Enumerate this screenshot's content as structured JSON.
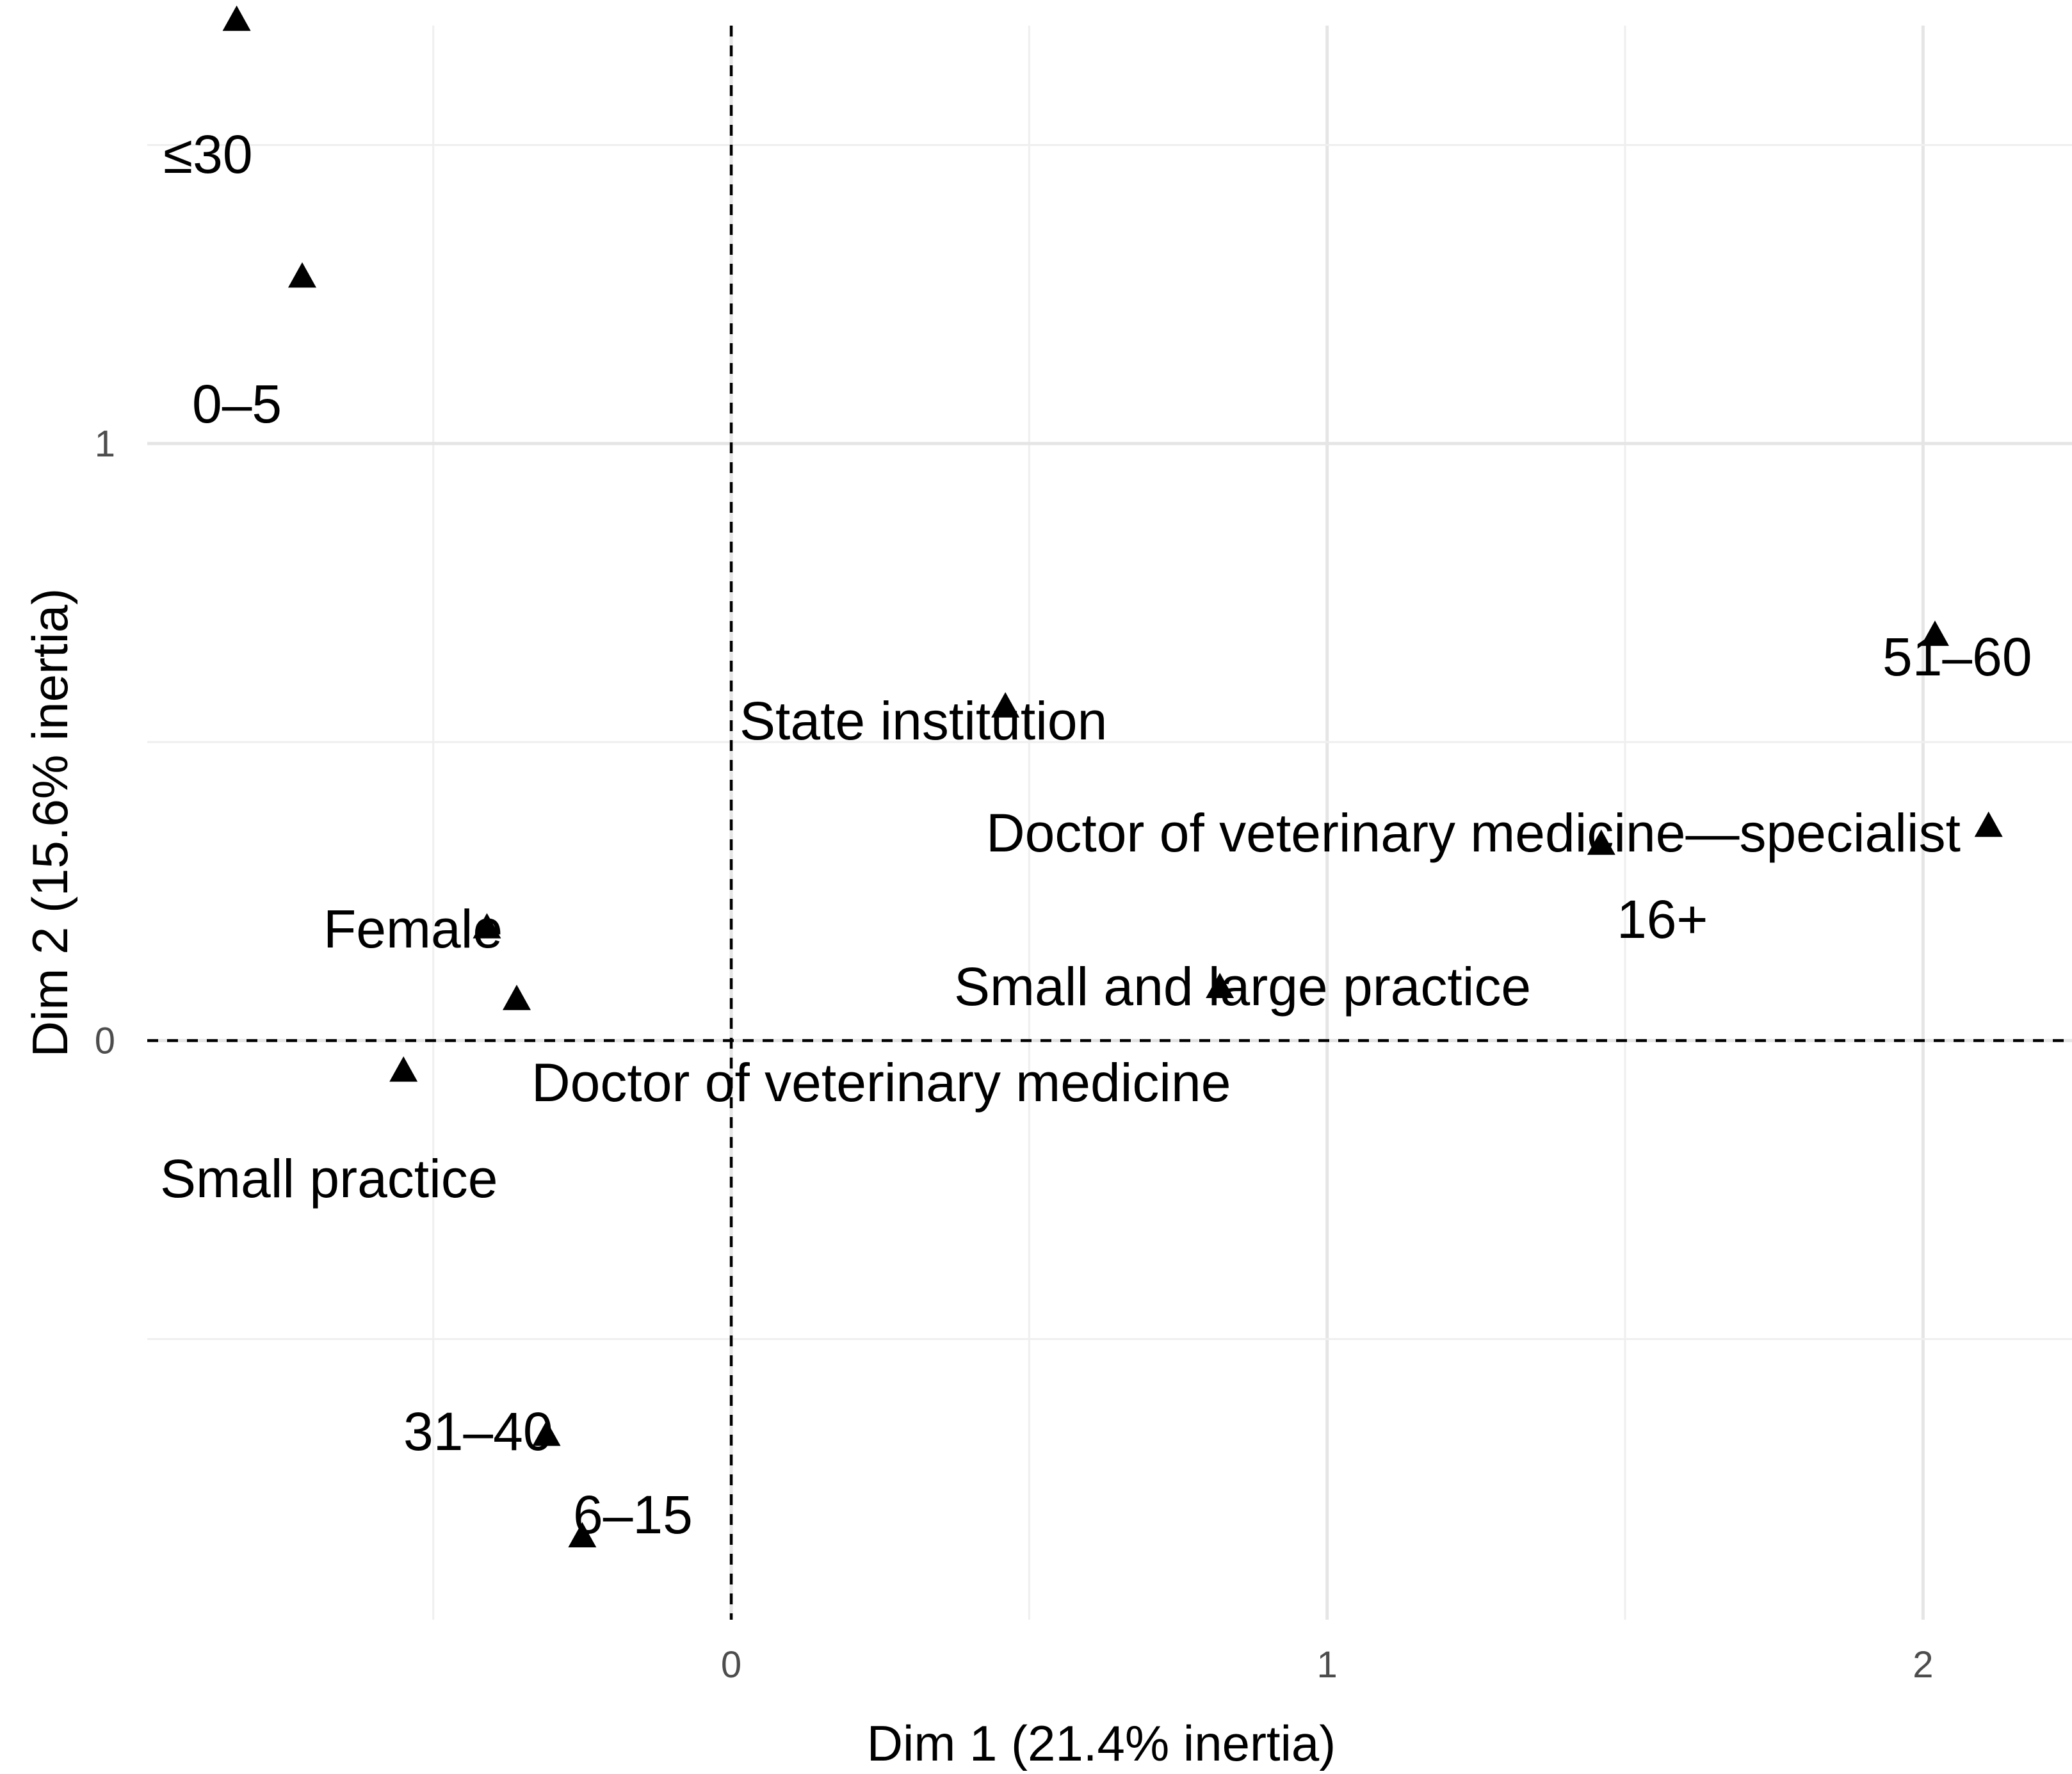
{
  "chart_data": {
    "type": "scatter",
    "xlabel": "Dim 1 (21.4% inertia)",
    "ylabel": "Dim 2 (15.6% inertia)",
    "xlim": [
      -0.98,
      2.25
    ],
    "ylim": [
      -0.97,
      1.7
    ],
    "x_ticks": [
      0,
      1,
      2
    ],
    "x_tick_labels": [
      "0",
      "1",
      "2"
    ],
    "y_ticks": [
      0,
      1
    ],
    "y_tick_labels": [
      "0",
      "1"
    ],
    "grid": true,
    "reference_lines": {
      "x": 0,
      "y": 0,
      "style": "dashed"
    },
    "marker": "triangle",
    "points": [
      {
        "label": "≤30",
        "x": -0.83,
        "y": 1.71,
        "label_pos": "below"
      },
      {
        "label": "0–5",
        "x": -0.72,
        "y": 1.28,
        "label_pos": "below-left"
      },
      {
        "label": "51–60",
        "x": 2.02,
        "y": 0.68,
        "label_pos": "above"
      },
      {
        "label": "State institution",
        "x": 0.46,
        "y": 0.56,
        "label_pos": "above-left"
      },
      {
        "label": "Doctor of veterinary medicine—specialist",
        "x": 2.11,
        "y": 0.36,
        "label_pos": "above-left"
      },
      {
        "label": "16+",
        "x": 1.46,
        "y": 0.33,
        "label_pos": "below-right"
      },
      {
        "label": "Female",
        "x": -0.41,
        "y": 0.19,
        "label_pos": "above-left"
      },
      {
        "label": "Small and large practice",
        "x": 0.82,
        "y": 0.09,
        "label_pos": "above"
      },
      {
        "label": "Doctor of veterinary medicine",
        "x": -0.36,
        "y": 0.07,
        "label_pos": "below-right"
      },
      {
        "label": "Small practice",
        "x": -0.55,
        "y": -0.05,
        "label_pos": "below"
      },
      {
        "label": "31–40",
        "x": -0.31,
        "y": -0.66,
        "label_pos": "above"
      },
      {
        "label": "6–15",
        "x": -0.25,
        "y": -0.83,
        "label_pos": "above-right"
      }
    ]
  }
}
